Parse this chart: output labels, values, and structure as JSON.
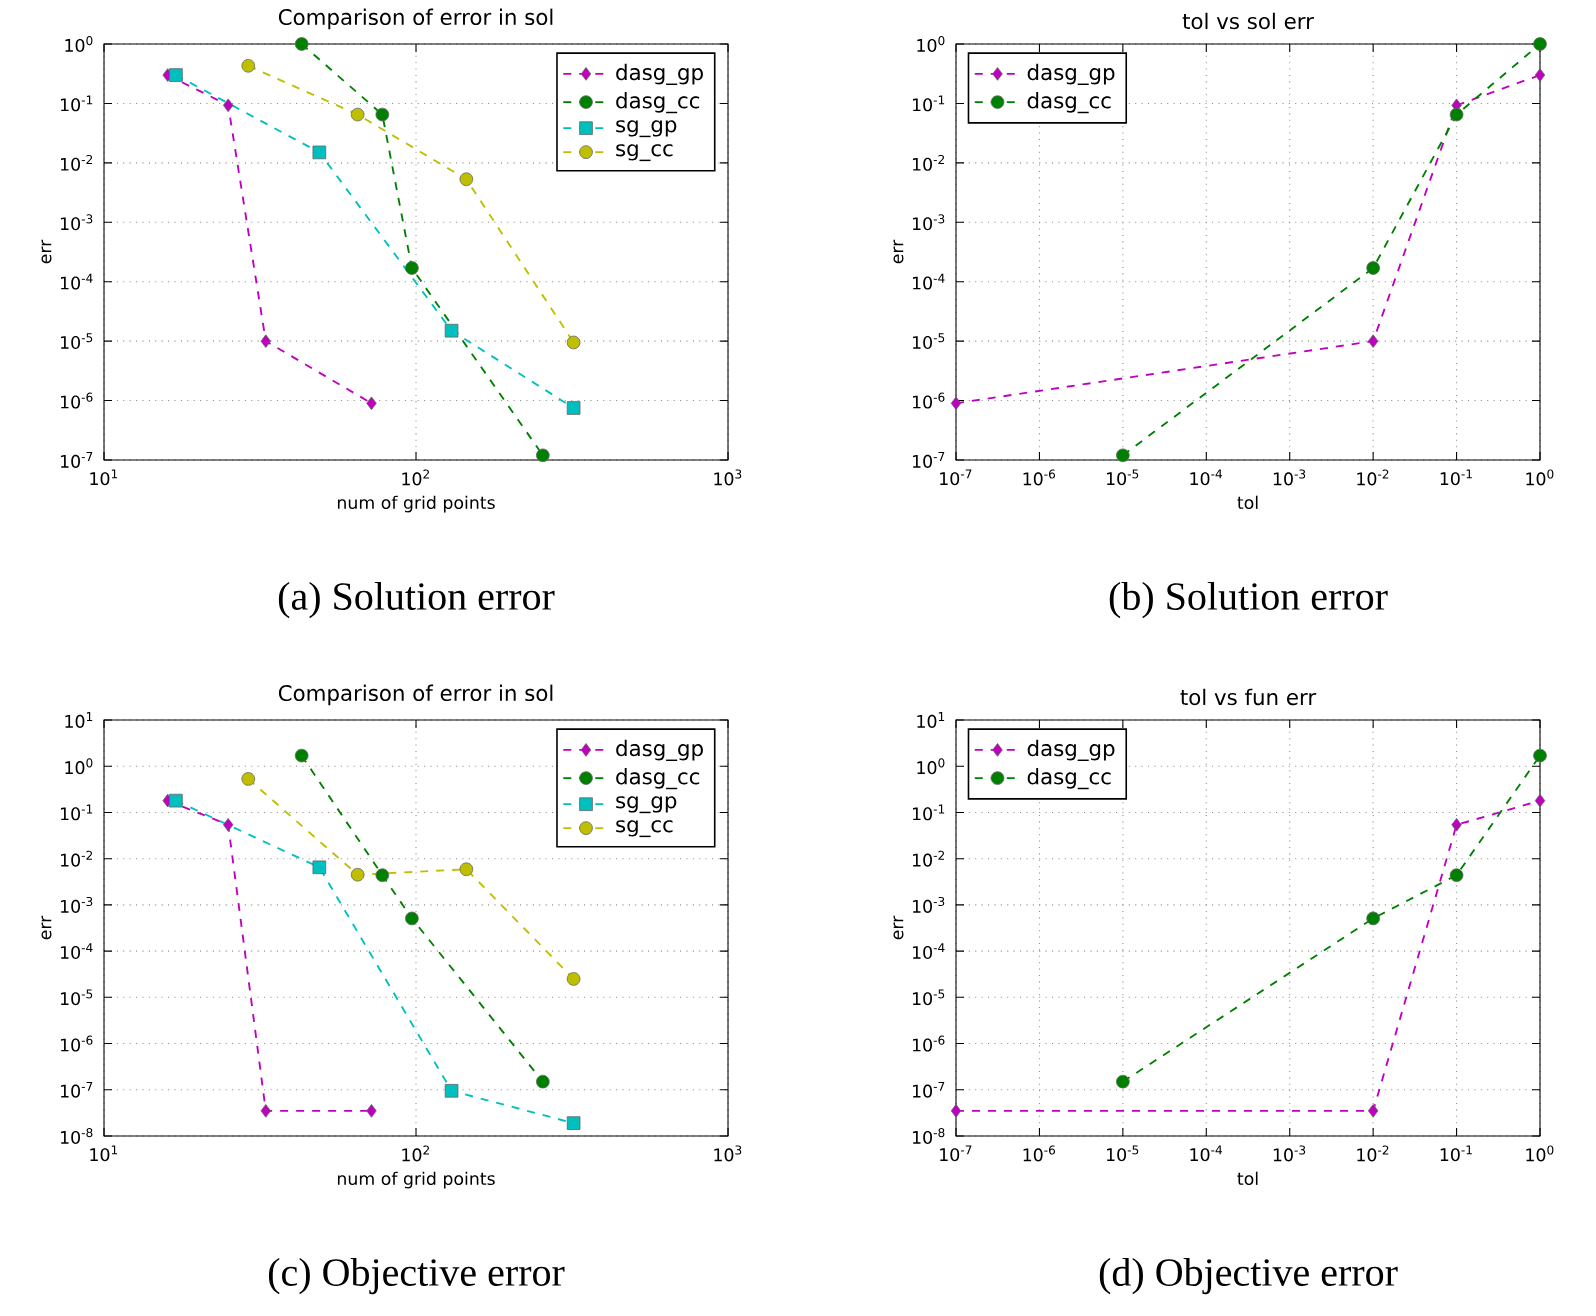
{
  "chart_data": [
    {
      "type": "line",
      "title": "Comparison of error in sol",
      "xlabel": "num of grid points",
      "ylabel": "err",
      "log": "xy",
      "grid": true,
      "legend": "top right",
      "line_style": "dashed",
      "xlim": [
        10,
        1000
      ],
      "ylim": [
        1e-07,
        1
      ],
      "xticks": [
        {
          "value": 10,
          "label": "10$^{1}$"
        },
        {
          "value": 100,
          "label": "10$^{2}$"
        },
        {
          "value": 1000,
          "label": "10$^{3}$"
        }
      ],
      "yticks": [
        {
          "value": 1e-07,
          "label": "10$^{-7}$"
        },
        {
          "value": 1e-06,
          "label": "10$^{-6}$"
        },
        {
          "value": 1e-05,
          "label": "10$^{-5}$"
        },
        {
          "value": 0.0001,
          "label": "10$^{-4}$"
        },
        {
          "value": 0.001,
          "label": "10$^{-3}$"
        },
        {
          "value": 0.01,
          "label": "10$^{-2}$"
        },
        {
          "value": 0.1,
          "label": "10$^{-1}$"
        },
        {
          "value": 1,
          "label": "10$^{0}$"
        }
      ],
      "series": [
        {
          "name": "dasg_gp",
          "color": "#bf00bf",
          "marker": "diamond",
          "x": [
            16,
            25,
            33,
            72
          ],
          "values": [
            0.3,
            0.093,
            1e-05,
            9e-07
          ]
        },
        {
          "name": "dasg_cc",
          "color": "#008000",
          "marker": "circle",
          "x": [
            43,
            78,
            97,
            255
          ],
          "values": [
            1,
            0.065,
            0.00017,
            1.2e-07
          ]
        },
        {
          "name": "sg_gp",
          "color": "#00bfbf",
          "marker": "square",
          "x": [
            17,
            49,
            130,
            320
          ],
          "values": [
            0.3,
            0.015,
            1.5e-05,
            7.5e-07
          ]
        },
        {
          "name": "sg_cc",
          "color": "#bfbf00",
          "marker": "circle",
          "x": [
            29,
            65,
            145,
            320
          ],
          "values": [
            0.43,
            0.065,
            0.0053,
            9.5e-06
          ]
        }
      ],
      "annotations": [
        "(a) Solution error"
      ]
    },
    {
      "type": "line",
      "title": "tol vs sol err",
      "xlabel": "tol",
      "ylabel": "err",
      "log": "xy",
      "grid": true,
      "legend": "top left",
      "line_style": "dashed",
      "xlim": [
        1e-07,
        1
      ],
      "ylim": [
        1e-07,
        1
      ],
      "xticks": [
        {
          "value": 1e-07,
          "label": "10$^{-7}$"
        },
        {
          "value": 1e-06,
          "label": "10$^{-6}$"
        },
        {
          "value": 1e-05,
          "label": "10$^{-5}$"
        },
        {
          "value": 0.0001,
          "label": "10$^{-4}$"
        },
        {
          "value": 0.001,
          "label": "10$^{-3}$"
        },
        {
          "value": 0.01,
          "label": "10$^{-2}$"
        },
        {
          "value": 0.1,
          "label": "10$^{-1}$"
        },
        {
          "value": 1,
          "label": "10$^{0}$"
        }
      ],
      "yticks": [
        {
          "value": 1e-07,
          "label": "10$^{-7}$"
        },
        {
          "value": 1e-06,
          "label": "10$^{-6}$"
        },
        {
          "value": 1e-05,
          "label": "10$^{-5}$"
        },
        {
          "value": 0.0001,
          "label": "10$^{-4}$"
        },
        {
          "value": 0.001,
          "label": "10$^{-3}$"
        },
        {
          "value": 0.01,
          "label": "10$^{-2}$"
        },
        {
          "value": 0.1,
          "label": "10$^{-1}$"
        },
        {
          "value": 1,
          "label": "10$^{0}$"
        }
      ],
      "series": [
        {
          "name": "dasg_gp",
          "color": "#bf00bf",
          "marker": "diamond",
          "x": [
            1e-07,
            0.01,
            0.1,
            1
          ],
          "values": [
            9e-07,
            1e-05,
            0.093,
            0.3
          ]
        },
        {
          "name": "dasg_cc",
          "color": "#008000",
          "marker": "circle",
          "x": [
            1e-05,
            0.01,
            0.1,
            1
          ],
          "values": [
            1.2e-07,
            0.00017,
            0.065,
            1
          ]
        }
      ],
      "annotations": [
        "(b) Solution error"
      ]
    },
    {
      "type": "line",
      "title": "Comparison of error in sol",
      "xlabel": "num of grid points",
      "ylabel": "err",
      "log": "xy",
      "grid": true,
      "legend": "top right",
      "line_style": "dashed",
      "xlim": [
        10,
        1000
      ],
      "ylim": [
        1e-08,
        10
      ],
      "xticks": [
        {
          "value": 10,
          "label": "10$^{1}$"
        },
        {
          "value": 100,
          "label": "10$^{2}$"
        },
        {
          "value": 1000,
          "label": "10$^{3}$"
        }
      ],
      "yticks": [
        {
          "value": 1e-08,
          "label": "10$^{-8}$"
        },
        {
          "value": 1e-07,
          "label": "10$^{-7}$"
        },
        {
          "value": 1e-06,
          "label": "10$^{-6}$"
        },
        {
          "value": 1e-05,
          "label": "10$^{-5}$"
        },
        {
          "value": 0.0001,
          "label": "10$^{-4}$"
        },
        {
          "value": 0.001,
          "label": "10$^{-3}$"
        },
        {
          "value": 0.01,
          "label": "10$^{-2}$"
        },
        {
          "value": 0.1,
          "label": "10$^{-1}$"
        },
        {
          "value": 1,
          "label": "10$^{0}$"
        },
        {
          "value": 10,
          "label": "10$^{1}$"
        }
      ],
      "series": [
        {
          "name": "dasg_gp",
          "color": "#bf00bf",
          "marker": "diamond",
          "x": [
            16,
            25,
            33,
            72
          ],
          "values": [
            0.18,
            0.054,
            3.5e-08,
            3.5e-08
          ]
        },
        {
          "name": "dasg_cc",
          "color": "#008000",
          "marker": "circle",
          "x": [
            43,
            78,
            97,
            255
          ],
          "values": [
            1.7,
            0.0044,
            0.00051,
            1.5e-07
          ]
        },
        {
          "name": "sg_gp",
          "color": "#00bfbf",
          "marker": "square",
          "x": [
            17,
            49,
            130,
            320
          ],
          "values": [
            0.18,
            0.0065,
            9.5e-08,
            1.9e-08
          ]
        },
        {
          "name": "sg_cc",
          "color": "#bfbf00",
          "marker": "circle",
          "x": [
            29,
            65,
            145,
            320
          ],
          "values": [
            0.53,
            0.0045,
            0.0059,
            2.5e-05
          ]
        }
      ],
      "annotations": [
        "(c) Objective error"
      ]
    },
    {
      "type": "line",
      "title": "tol vs fun err",
      "xlabel": "tol",
      "ylabel": "err",
      "log": "xy",
      "grid": true,
      "legend": "top left",
      "line_style": "dashed",
      "xlim": [
        1e-07,
        1
      ],
      "ylim": [
        1e-08,
        10
      ],
      "xticks": [
        {
          "value": 1e-07,
          "label": "10$^{-7}$"
        },
        {
          "value": 1e-06,
          "label": "10$^{-6}$"
        },
        {
          "value": 1e-05,
          "label": "10$^{-5}$"
        },
        {
          "value": 0.0001,
          "label": "10$^{-4}$"
        },
        {
          "value": 0.001,
          "label": "10$^{-3}$"
        },
        {
          "value": 0.01,
          "label": "10$^{-2}$"
        },
        {
          "value": 0.1,
          "label": "10$^{-1}$"
        },
        {
          "value": 1,
          "label": "10$^{0}$"
        }
      ],
      "yticks": [
        {
          "value": 1e-08,
          "label": "10$^{-8}$"
        },
        {
          "value": 1e-07,
          "label": "10$^{-7}$"
        },
        {
          "value": 1e-06,
          "label": "10$^{-6}$"
        },
        {
          "value": 1e-05,
          "label": "10$^{-5}$"
        },
        {
          "value": 0.0001,
          "label": "10$^{-4}$"
        },
        {
          "value": 0.001,
          "label": "10$^{-3}$"
        },
        {
          "value": 0.01,
          "label": "10$^{-2}$"
        },
        {
          "value": 0.1,
          "label": "10$^{-1}$"
        },
        {
          "value": 1,
          "label": "10$^{0}$"
        },
        {
          "value": 10,
          "label": "10$^{1}$"
        }
      ],
      "series": [
        {
          "name": "dasg_gp",
          "color": "#bf00bf",
          "marker": "diamond",
          "x": [
            1e-07,
            0.01,
            0.1,
            1
          ],
          "values": [
            3.5e-08,
            3.5e-08,
            0.054,
            0.18
          ]
        },
        {
          "name": "dasg_cc",
          "color": "#008000",
          "marker": "circle",
          "x": [
            1e-05,
            0.01,
            0.1,
            1
          ],
          "values": [
            1.5e-07,
            0.00051,
            0.0044,
            1.7
          ]
        }
      ],
      "annotations": [
        "(d) Objective error"
      ]
    }
  ]
}
